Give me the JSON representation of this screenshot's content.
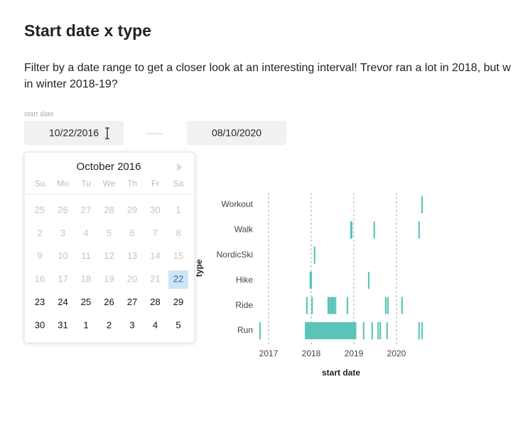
{
  "header": {
    "title": "Start date x type"
  },
  "intro": [
    "Filter by a date range to get a closer look at an interesting interval! Trevor ran a lot in 2018, but w",
    "in winter 2018-19?"
  ],
  "filter": {
    "label": "start date",
    "start": "10/22/2016",
    "end": "08/10/2020"
  },
  "calendar": {
    "month": "October 2016",
    "weekdays": [
      "Su",
      "Mo",
      "Tu",
      "We",
      "Th",
      "Fr",
      "Sa"
    ],
    "weeks": [
      [
        25,
        26,
        27,
        28,
        29,
        30,
        1
      ],
      [
        2,
        3,
        4,
        5,
        6,
        7,
        8
      ],
      [
        9,
        10,
        11,
        12,
        13,
        14,
        15
      ],
      [
        16,
        17,
        18,
        19,
        20,
        21,
        22
      ],
      [
        23,
        24,
        25,
        26,
        27,
        28,
        29
      ],
      [
        30,
        31,
        1,
        2,
        3,
        4,
        5
      ]
    ],
    "selected_day": 22
  },
  "chart_data": {
    "type": "strip",
    "x_label": "start date",
    "y_label": "type",
    "color": "#4fbfb3",
    "grid": true,
    "xlim": [
      2016.6,
      2020.7
    ],
    "xticks": [
      2017,
      2018,
      2019,
      2020
    ],
    "series": [
      {
        "name": "Workout",
        "values": [
          2020.6
        ]
      },
      {
        "name": "Walk",
        "values": [
          2018.93,
          2018.95,
          2019.48,
          2020.53
        ]
      },
      {
        "name": "NordicSki",
        "values": [
          2018.08
        ]
      },
      {
        "name": "Hike",
        "values": [
          2017.98,
          2018.0,
          2019.35
        ]
      },
      {
        "name": "Ride",
        "values": [
          2017.9,
          2018.02,
          2018.4,
          2018.43,
          2018.47,
          2018.5,
          2018.53,
          2018.57,
          2018.85,
          2019.75,
          2019.8,
          2020.13
        ]
      },
      {
        "name": "Run",
        "values": [
          2016.8,
          2017.87,
          2017.9,
          2017.93,
          2017.96,
          2017.99,
          2018.02,
          2018.05,
          2018.08,
          2018.11,
          2018.14,
          2018.17,
          2018.2,
          2018.23,
          2018.26,
          2018.29,
          2018.32,
          2018.35,
          2018.38,
          2018.41,
          2018.44,
          2018.47,
          2018.5,
          2018.53,
          2018.56,
          2018.59,
          2018.62,
          2018.65,
          2018.68,
          2018.71,
          2018.74,
          2018.77,
          2018.8,
          2018.83,
          2018.86,
          2018.89,
          2018.92,
          2018.95,
          2018.98,
          2019.01,
          2019.04,
          2019.23,
          2019.43,
          2019.57,
          2019.62,
          2019.78,
          2020.53,
          2020.6
        ]
      }
    ]
  }
}
